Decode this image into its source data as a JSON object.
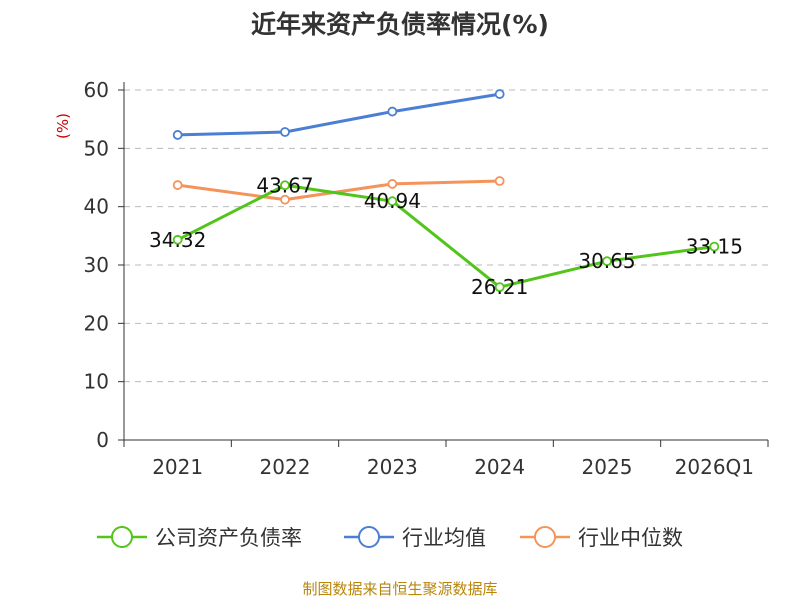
{
  "chart_data": {
    "type": "line",
    "title": "近年来资产负债率情况(%)",
    "ylabel": "(%)",
    "xlabel": "",
    "ylim": [
      0,
      60
    ],
    "yticks": [
      0,
      10,
      20,
      30,
      40,
      50,
      60
    ],
    "categories": [
      "2021",
      "2022",
      "2023",
      "2024",
      "2025",
      "2026Q1"
    ],
    "grid": true,
    "legend_position": "bottom",
    "series": [
      {
        "name": "公司资产负债率",
        "color": "#52c41a",
        "values": [
          34.32,
          43.67,
          40.94,
          26.21,
          30.65,
          33.15
        ],
        "labels": [
          "34.32",
          "43.67",
          "40.94",
          "26.21",
          "30.65",
          "33.15"
        ]
      },
      {
        "name": "行业均值",
        "color": "#4a7fd4",
        "values": [
          52.3,
          52.8,
          56.3,
          59.3,
          null,
          null
        ]
      },
      {
        "name": "行业中位数",
        "color": "#f4935a",
        "values": [
          43.7,
          41.2,
          43.9,
          44.4,
          null,
          null
        ]
      }
    ]
  },
  "footer": {
    "source": "制图数据来自恒生聚源数据库"
  }
}
